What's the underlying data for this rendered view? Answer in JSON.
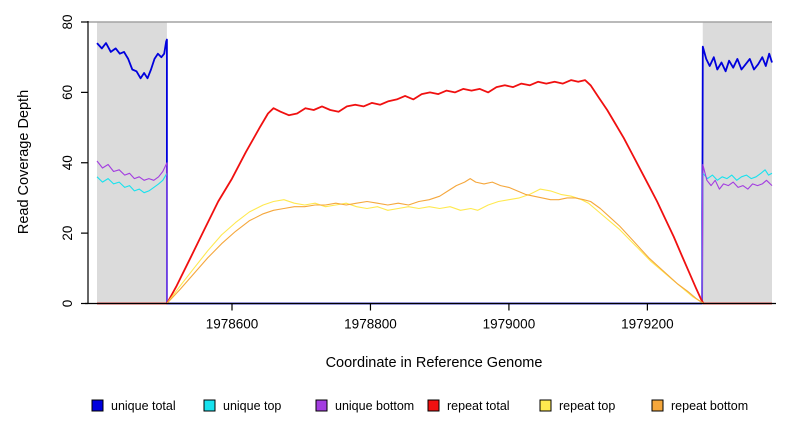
{
  "figure": {
    "xlabel": "Coordinate in Reference Genome",
    "ylabel": "Read Coverage Depth"
  },
  "colors": {
    "shaded_band": "#DBDBDB",
    "top_border": "#A3A3A3",
    "axis": "#000000"
  },
  "chart_data": {
    "type": "line",
    "title": "",
    "xlabel": "Coordinate in Reference Genome",
    "ylabel": "Read Coverage Depth",
    "xlim": [
      1978405,
      1979380
    ],
    "ylim": [
      0,
      80
    ],
    "x_ticks": [
      1978600,
      1978800,
      1979000,
      1979200
    ],
    "y_ticks": [
      0,
      20,
      40,
      60,
      80
    ],
    "grid": false,
    "legend_position": "bottom",
    "shaded_regions": [
      {
        "x0": 1978405,
        "x1": 1978506
      },
      {
        "x0": 1979280,
        "x1": 1979380
      }
    ],
    "series": [
      {
        "name": "unique total",
        "color": "#0000DD",
        "width": 1.8,
        "points": [
          [
            1978405,
            74
          ],
          [
            1978412,
            72.5
          ],
          [
            1978418,
            74
          ],
          [
            1978425,
            71.5
          ],
          [
            1978432,
            72.5
          ],
          [
            1978438,
            71
          ],
          [
            1978444,
            71.5
          ],
          [
            1978450,
            69.5
          ],
          [
            1978456,
            66.5
          ],
          [
            1978462,
            66
          ],
          [
            1978468,
            64
          ],
          [
            1978473,
            65.5
          ],
          [
            1978478,
            64
          ],
          [
            1978483,
            66.5
          ],
          [
            1978488,
            69.5
          ],
          [
            1978493,
            71
          ],
          [
            1978498,
            70
          ],
          [
            1978502,
            71
          ],
          [
            1978505,
            74.5
          ],
          [
            1978506,
            75
          ],
          [
            1978506,
            0
          ],
          [
            1979279,
            0
          ],
          [
            1979280,
            73
          ],
          [
            1979285,
            69.5
          ],
          [
            1979290,
            67.5
          ],
          [
            1979296,
            70
          ],
          [
            1979301,
            66.5
          ],
          [
            1979307,
            68.5
          ],
          [
            1979313,
            66
          ],
          [
            1979318,
            69
          ],
          [
            1979324,
            67
          ],
          [
            1979330,
            69.5
          ],
          [
            1979336,
            66.5
          ],
          [
            1979342,
            68
          ],
          [
            1979348,
            69.5
          ],
          [
            1979354,
            66.5
          ],
          [
            1979360,
            68
          ],
          [
            1979366,
            70
          ],
          [
            1979371,
            67.5
          ],
          [
            1979376,
            71
          ],
          [
            1979380,
            68.5
          ]
        ]
      },
      {
        "name": "unique top",
        "color": "#17E2EE",
        "width": 1.1,
        "points": [
          [
            1978405,
            36
          ],
          [
            1978413,
            34.5
          ],
          [
            1978421,
            35.5
          ],
          [
            1978429,
            34
          ],
          [
            1978437,
            34.5
          ],
          [
            1978445,
            33
          ],
          [
            1978452,
            33.5
          ],
          [
            1978459,
            32
          ],
          [
            1978466,
            32.5
          ],
          [
            1978473,
            31.5
          ],
          [
            1978480,
            32
          ],
          [
            1978487,
            33
          ],
          [
            1978494,
            34
          ],
          [
            1978500,
            35
          ],
          [
            1978506,
            37
          ],
          [
            1978506,
            0
          ],
          [
            1979279,
            0
          ],
          [
            1979280,
            37
          ],
          [
            1979287,
            35.5
          ],
          [
            1979294,
            36.5
          ],
          [
            1979301,
            35
          ],
          [
            1979308,
            36
          ],
          [
            1979315,
            35.5
          ],
          [
            1979322,
            36.5
          ],
          [
            1979329,
            35
          ],
          [
            1979336,
            36
          ],
          [
            1979343,
            36.5
          ],
          [
            1979350,
            35.5
          ],
          [
            1979357,
            36
          ],
          [
            1979364,
            37
          ],
          [
            1979370,
            38
          ],
          [
            1979375,
            36.5
          ],
          [
            1979380,
            37
          ]
        ]
      },
      {
        "name": "unique bottom",
        "color": "#A33DE0",
        "width": 1.1,
        "points": [
          [
            1978405,
            40.5
          ],
          [
            1978413,
            38.5
          ],
          [
            1978421,
            39.5
          ],
          [
            1978429,
            37.5
          ],
          [
            1978437,
            38
          ],
          [
            1978445,
            36.5
          ],
          [
            1978452,
            37
          ],
          [
            1978459,
            35.5
          ],
          [
            1978466,
            36
          ],
          [
            1978473,
            35
          ],
          [
            1978480,
            35.5
          ],
          [
            1978487,
            35
          ],
          [
            1978494,
            36
          ],
          [
            1978500,
            37.5
          ],
          [
            1978506,
            40
          ],
          [
            1978506,
            0
          ],
          [
            1979279,
            0
          ],
          [
            1979280,
            39.5
          ],
          [
            1979286,
            35
          ],
          [
            1979292,
            33.5
          ],
          [
            1979298,
            35
          ],
          [
            1979304,
            32.5
          ],
          [
            1979310,
            34
          ],
          [
            1979317,
            33.5
          ],
          [
            1979324,
            34.5
          ],
          [
            1979331,
            33
          ],
          [
            1979338,
            33.5
          ],
          [
            1979345,
            32.5
          ],
          [
            1979352,
            34
          ],
          [
            1979359,
            33.5
          ],
          [
            1979366,
            34
          ],
          [
            1979372,
            35
          ],
          [
            1979380,
            33.5
          ]
        ]
      },
      {
        "name": "repeat total",
        "color": "#F01010",
        "width": 1.8,
        "points": [
          [
            1978405,
            0
          ],
          [
            1978506,
            0
          ],
          [
            1978520,
            5
          ],
          [
            1978540,
            13
          ],
          [
            1978560,
            21
          ],
          [
            1978580,
            29
          ],
          [
            1978600,
            35.5
          ],
          [
            1978620,
            43
          ],
          [
            1978640,
            50
          ],
          [
            1978652,
            54
          ],
          [
            1978660,
            55.5
          ],
          [
            1978670,
            54.5
          ],
          [
            1978682,
            53.5
          ],
          [
            1978694,
            54
          ],
          [
            1978706,
            55.5
          ],
          [
            1978718,
            55
          ],
          [
            1978730,
            56
          ],
          [
            1978742,
            55
          ],
          [
            1978754,
            54.5
          ],
          [
            1978766,
            56
          ],
          [
            1978778,
            56.5
          ],
          [
            1978790,
            56
          ],
          [
            1978802,
            57
          ],
          [
            1978814,
            56.5
          ],
          [
            1978826,
            57.5
          ],
          [
            1978838,
            58
          ],
          [
            1978850,
            59
          ],
          [
            1978862,
            58
          ],
          [
            1978874,
            59.5
          ],
          [
            1978886,
            60
          ],
          [
            1978898,
            59.5
          ],
          [
            1978910,
            60.5
          ],
          [
            1978922,
            60
          ],
          [
            1978934,
            61
          ],
          [
            1978946,
            60.5
          ],
          [
            1978958,
            61
          ],
          [
            1978970,
            60
          ],
          [
            1978982,
            61.5
          ],
          [
            1978994,
            62
          ],
          [
            1979006,
            61.5
          ],
          [
            1979018,
            62.5
          ],
          [
            1979030,
            62
          ],
          [
            1979042,
            63
          ],
          [
            1979054,
            62.5
          ],
          [
            1979066,
            63
          ],
          [
            1979078,
            62.5
          ],
          [
            1979090,
            63.5
          ],
          [
            1979100,
            63
          ],
          [
            1979110,
            63.5
          ],
          [
            1979118,
            62
          ],
          [
            1979130,
            58.5
          ],
          [
            1979142,
            55
          ],
          [
            1979154,
            51
          ],
          [
            1979166,
            47
          ],
          [
            1979178,
            42.5
          ],
          [
            1979190,
            38
          ],
          [
            1979202,
            33.5
          ],
          [
            1979214,
            29
          ],
          [
            1979226,
            24
          ],
          [
            1979238,
            19
          ],
          [
            1979250,
            13.5
          ],
          [
            1979260,
            9
          ],
          [
            1979270,
            4.5
          ],
          [
            1979278,
            1
          ],
          [
            1979281,
            0
          ],
          [
            1979380,
            0
          ]
        ]
      },
      {
        "name": "repeat top",
        "color": "#FFE94F",
        "width": 1.1,
        "points": [
          [
            1978405,
            0
          ],
          [
            1978506,
            0
          ],
          [
            1978525,
            5
          ],
          [
            1978545,
            10
          ],
          [
            1978565,
            15
          ],
          [
            1978585,
            19.5
          ],
          [
            1978605,
            23
          ],
          [
            1978625,
            26
          ],
          [
            1978645,
            28
          ],
          [
            1978660,
            29
          ],
          [
            1978675,
            29.5
          ],
          [
            1978690,
            28.5
          ],
          [
            1978705,
            28
          ],
          [
            1978720,
            28.5
          ],
          [
            1978735,
            27.5
          ],
          [
            1978750,
            28
          ],
          [
            1978765,
            28.5
          ],
          [
            1978780,
            27.5
          ],
          [
            1978795,
            27
          ],
          [
            1978810,
            27.5
          ],
          [
            1978825,
            26.5
          ],
          [
            1978840,
            27
          ],
          [
            1978855,
            27.5
          ],
          [
            1978870,
            27
          ],
          [
            1978885,
            27.5
          ],
          [
            1978900,
            27
          ],
          [
            1978915,
            27.5
          ],
          [
            1978930,
            26.5
          ],
          [
            1978945,
            27
          ],
          [
            1978955,
            26.5
          ],
          [
            1978970,
            28
          ],
          [
            1978985,
            29
          ],
          [
            1979000,
            29.5
          ],
          [
            1979015,
            30
          ],
          [
            1979030,
            31
          ],
          [
            1979045,
            32.5
          ],
          [
            1979060,
            32
          ],
          [
            1979075,
            31
          ],
          [
            1979090,
            30.5
          ],
          [
            1979105,
            29.5
          ],
          [
            1979115,
            28.5
          ],
          [
            1979130,
            26
          ],
          [
            1979145,
            23.5
          ],
          [
            1979160,
            21
          ],
          [
            1979175,
            18
          ],
          [
            1979190,
            15
          ],
          [
            1979205,
            12
          ],
          [
            1979220,
            9.5
          ],
          [
            1979235,
            7
          ],
          [
            1979250,
            4.5
          ],
          [
            1979265,
            2
          ],
          [
            1979277,
            0.5
          ],
          [
            1979281,
            0
          ],
          [
            1979380,
            0
          ]
        ]
      },
      {
        "name": "repeat bottom",
        "color": "#F5A73C",
        "width": 1.1,
        "points": [
          [
            1978405,
            0
          ],
          [
            1978506,
            0
          ],
          [
            1978525,
            4
          ],
          [
            1978545,
            8.5
          ],
          [
            1978565,
            13
          ],
          [
            1978585,
            17
          ],
          [
            1978605,
            20.5
          ],
          [
            1978625,
            23.5
          ],
          [
            1978645,
            25.5
          ],
          [
            1978660,
            26.5
          ],
          [
            1978675,
            27
          ],
          [
            1978690,
            27.5
          ],
          [
            1978705,
            27.5
          ],
          [
            1978720,
            28
          ],
          [
            1978735,
            28
          ],
          [
            1978750,
            28.5
          ],
          [
            1978765,
            28
          ],
          [
            1978780,
            28.5
          ],
          [
            1978795,
            29
          ],
          [
            1978810,
            28.5
          ],
          [
            1978825,
            28
          ],
          [
            1978840,
            28.5
          ],
          [
            1978855,
            28
          ],
          [
            1978870,
            29
          ],
          [
            1978885,
            29.5
          ],
          [
            1978900,
            30.5
          ],
          [
            1978912,
            32
          ],
          [
            1978924,
            33.5
          ],
          [
            1978936,
            34.5
          ],
          [
            1978944,
            35.5
          ],
          [
            1978952,
            34.5
          ],
          [
            1978964,
            34
          ],
          [
            1978976,
            34.5
          ],
          [
            1978988,
            33.5
          ],
          [
            1979000,
            33
          ],
          [
            1979012,
            32
          ],
          [
            1979024,
            31
          ],
          [
            1979036,
            30.5
          ],
          [
            1979048,
            30
          ],
          [
            1979060,
            29.5
          ],
          [
            1979072,
            29.5
          ],
          [
            1979084,
            30
          ],
          [
            1979096,
            30
          ],
          [
            1979108,
            29.5
          ],
          [
            1979118,
            29
          ],
          [
            1979132,
            27
          ],
          [
            1979146,
            24.5
          ],
          [
            1979160,
            22
          ],
          [
            1979174,
            19
          ],
          [
            1979188,
            16
          ],
          [
            1979202,
            13
          ],
          [
            1979216,
            10.5
          ],
          [
            1979230,
            8
          ],
          [
            1979244,
            5.5
          ],
          [
            1979258,
            3.5
          ],
          [
            1979270,
            1.5
          ],
          [
            1979281,
            0
          ],
          [
            1979380,
            0
          ]
        ]
      }
    ]
  }
}
